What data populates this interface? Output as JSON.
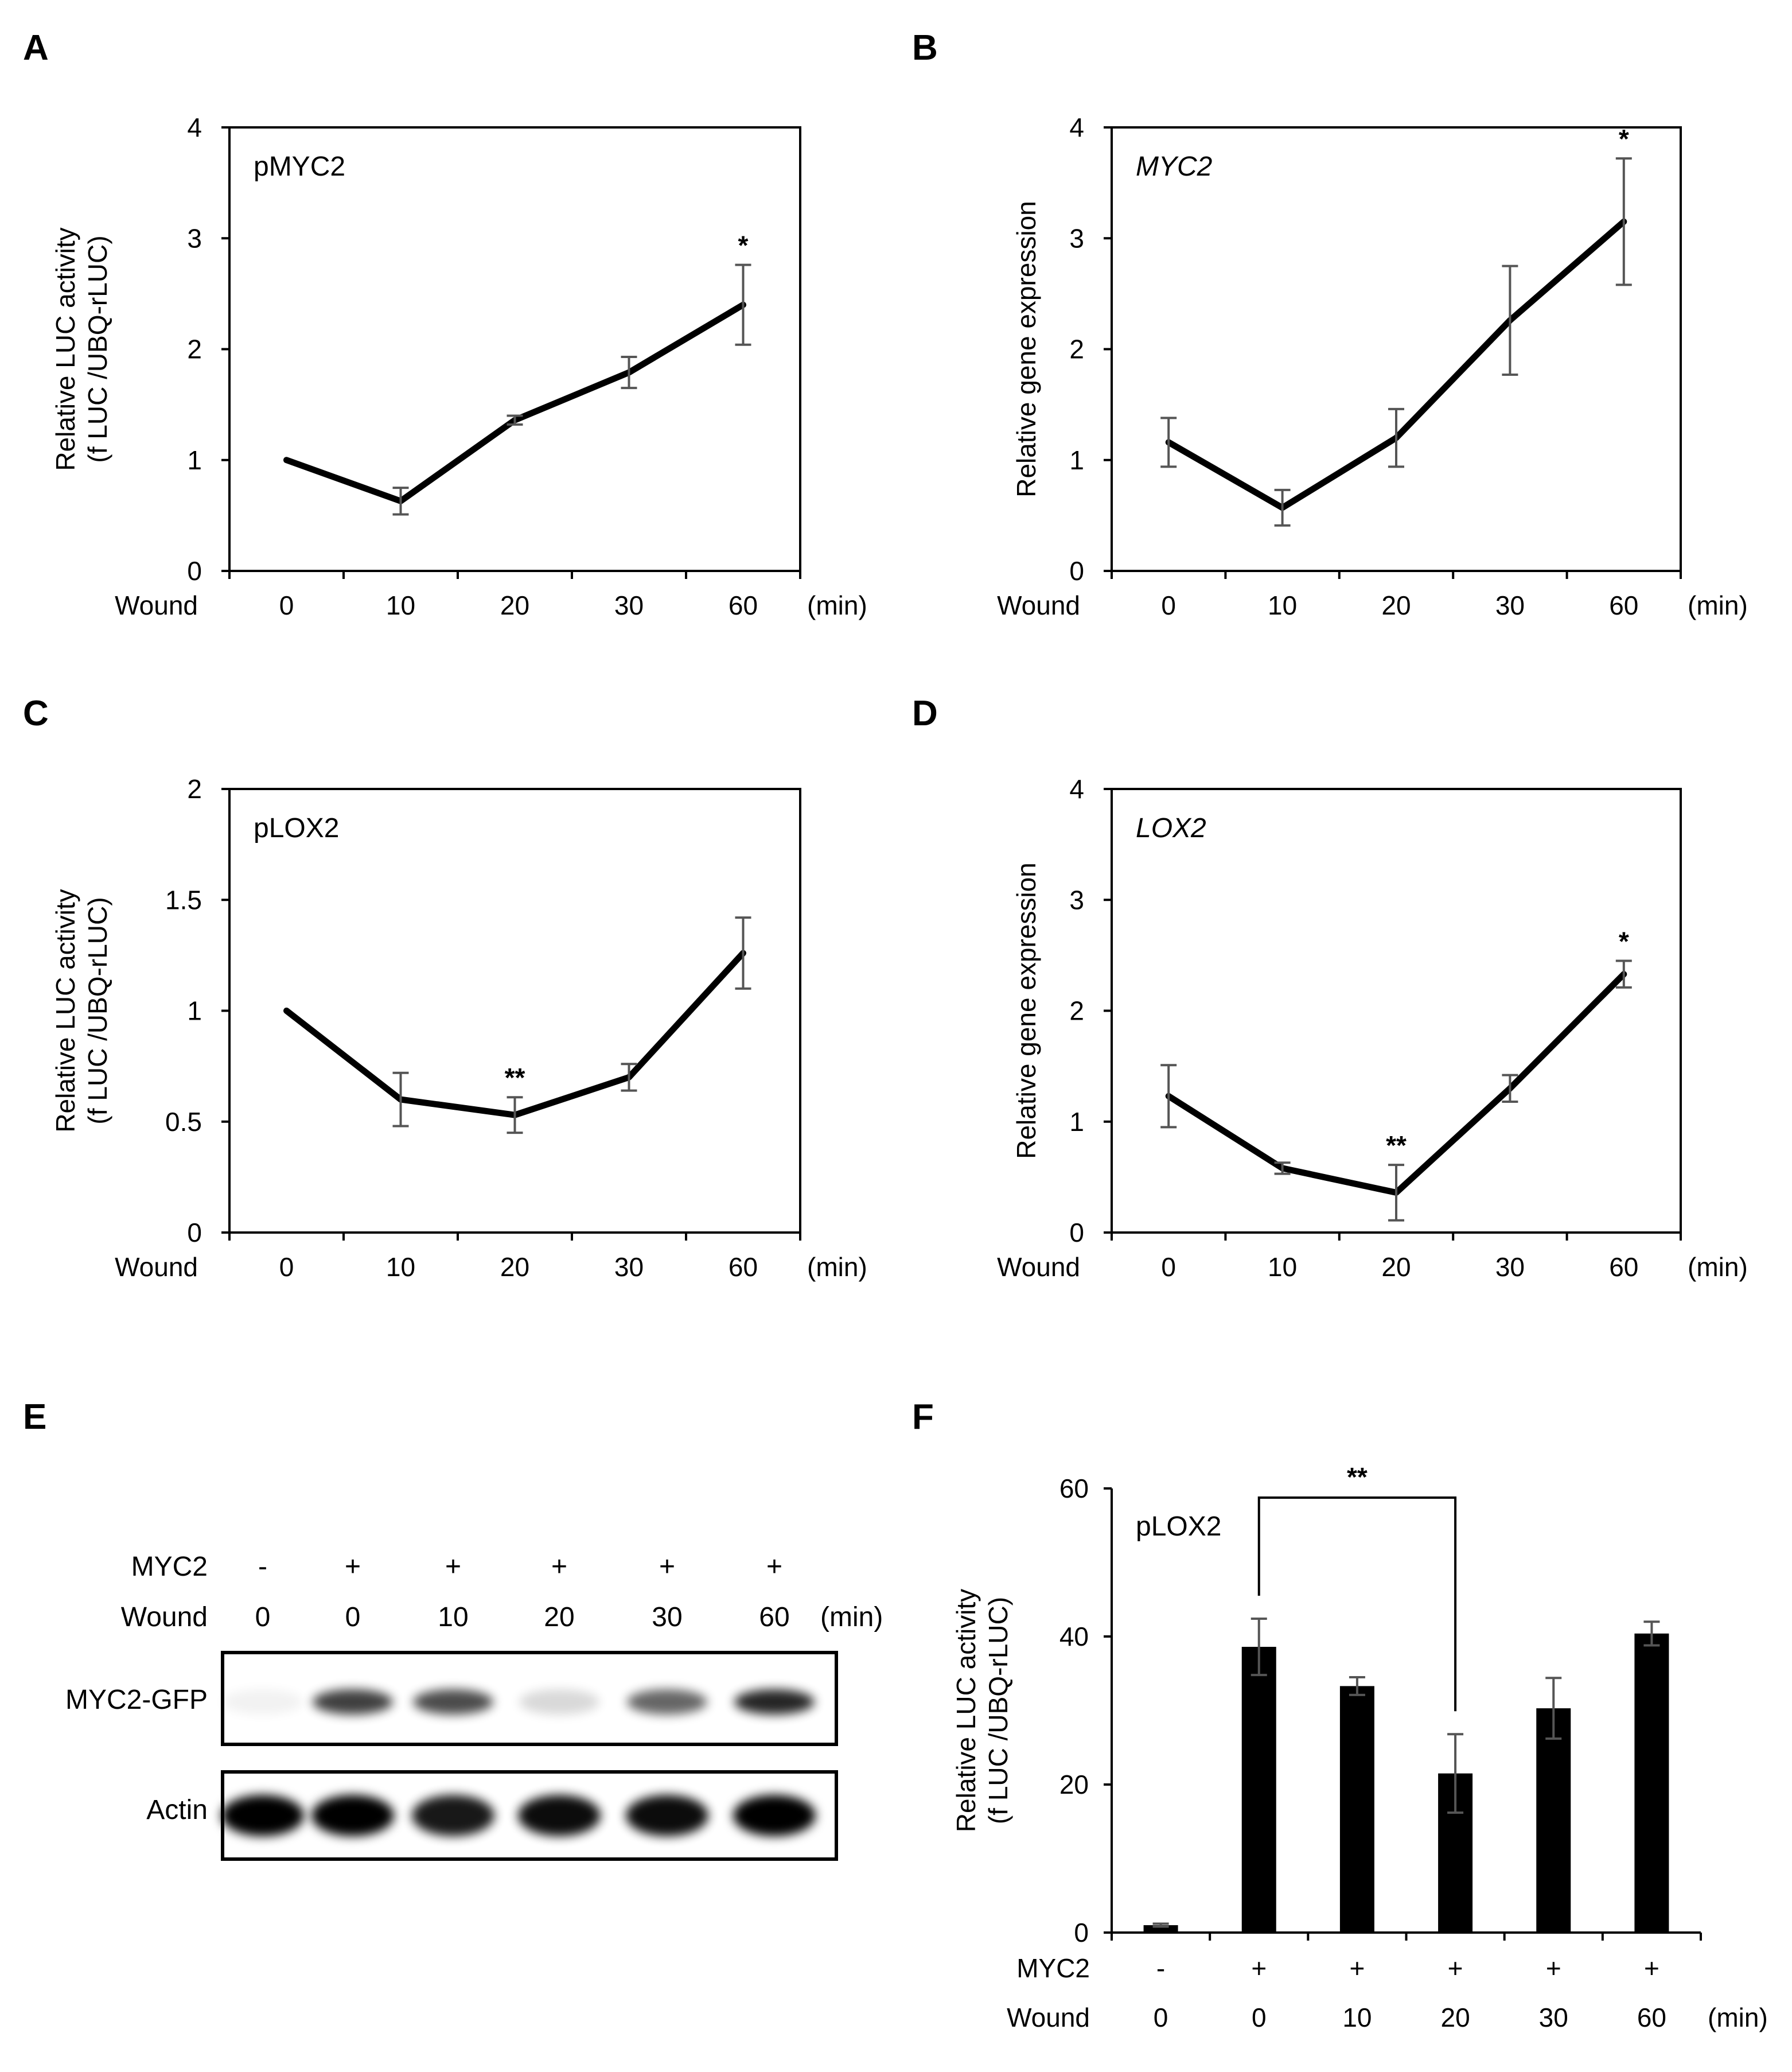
{
  "panel_letters": [
    "A",
    "B",
    "C",
    "D",
    "E",
    "F"
  ],
  "chart_data": [
    {
      "panel": "A",
      "type": "line",
      "annotation": "pMYC2",
      "annotation_italic": false,
      "ylabel_lines": [
        "Relative LUC activity",
        "(f LUC /UBQ-rLUC)"
      ],
      "ylim": [
        0,
        4
      ],
      "yticks": [
        "0",
        "1",
        "2",
        "3",
        "4"
      ],
      "xrow_label": "Wound",
      "categories": [
        "0",
        "10",
        "20",
        "30",
        "60"
      ],
      "unit": "(min)",
      "values": [
        1.0,
        0.63,
        1.36,
        1.79,
        2.4
      ],
      "errors": [
        0,
        0.12,
        0.04,
        0.14,
        0.36
      ],
      "significance": [
        "",
        "",
        "",
        "",
        "*"
      ]
    },
    {
      "panel": "B",
      "type": "line",
      "annotation": "MYC2",
      "annotation_italic": true,
      "ylabel_lines": [
        "Relative gene expression"
      ],
      "ylim": [
        0,
        4
      ],
      "yticks": [
        "0",
        "1",
        "2",
        "3",
        "4"
      ],
      "xrow_label": "Wound",
      "categories": [
        "0",
        "10",
        "20",
        "30",
        "60"
      ],
      "unit": "(min)",
      "values": [
        1.16,
        0.57,
        1.2,
        2.26,
        3.15
      ],
      "errors": [
        0.22,
        0.16,
        0.26,
        0.49,
        0.57
      ],
      "significance": [
        "",
        "",
        "",
        "",
        "*"
      ]
    },
    {
      "panel": "C",
      "type": "line",
      "annotation": "pLOX2",
      "annotation_italic": false,
      "ylabel_lines": [
        "Relative LUC activity",
        "(f LUC /UBQ-rLUC)"
      ],
      "ylim": [
        0,
        2
      ],
      "yticks": [
        "0",
        "0.5",
        "1",
        "1.5",
        "2"
      ],
      "xrow_label": "Wound",
      "categories": [
        "0",
        "10",
        "20",
        "30",
        "60"
      ],
      "unit": "(min)",
      "values": [
        1.0,
        0.6,
        0.53,
        0.7,
        1.26
      ],
      "errors": [
        0,
        0.12,
        0.08,
        0.06,
        0.16
      ],
      "significance": [
        "",
        "",
        "**",
        "",
        ""
      ]
    },
    {
      "panel": "D",
      "type": "line",
      "annotation": "LOX2",
      "annotation_italic": true,
      "ylabel_lines": [
        "Relative gene expression"
      ],
      "ylim": [
        0,
        4
      ],
      "yticks": [
        "0",
        "1",
        "2",
        "3",
        "4"
      ],
      "xrow_label": "Wound",
      "categories": [
        "0",
        "10",
        "20",
        "30",
        "60"
      ],
      "unit": "(min)",
      "values": [
        1.23,
        0.58,
        0.36,
        1.3,
        2.33
      ],
      "errors": [
        0.28,
        0.05,
        0.25,
        0.12,
        0.12
      ],
      "significance": [
        "",
        "",
        "**",
        "",
        "*"
      ]
    },
    {
      "panel": "F",
      "type": "bar",
      "annotation": "pLOX2",
      "annotation_italic": false,
      "ylabel_lines": [
        "Relative LUC activity",
        "(f LUC /UBQ-rLUC)"
      ],
      "ylim": [
        0,
        60
      ],
      "yticks": [
        "0",
        "20",
        "40",
        "60"
      ],
      "row1_label": "MYC2",
      "row1": [
        "-",
        "+",
        "+",
        "+",
        "+",
        "+"
      ],
      "row2_label": "Wound",
      "row2": [
        "0",
        "0",
        "10",
        "20",
        "30",
        "60"
      ],
      "unit": "(min)",
      "values": [
        1.0,
        38.6,
        33.3,
        21.5,
        30.3,
        40.4
      ],
      "errors": [
        0.2,
        3.8,
        1.2,
        5.3,
        4.1,
        1.6
      ],
      "bracket": {
        "from": 1,
        "to": 3,
        "label": "**"
      }
    }
  ],
  "blot": {
    "panel": "E",
    "row1_label": "MYC2",
    "row1": [
      "-",
      "+",
      "+",
      "+",
      "+",
      "+"
    ],
    "row2_label": "Wound",
    "row2": [
      "0",
      "0",
      "10",
      "20",
      "30",
      "60"
    ],
    "unit": "(min)",
    "bands": [
      "MYC2-GFP",
      "Actin"
    ],
    "band_intensity": {
      "MYC2-GFP": [
        0.05,
        0.75,
        0.7,
        0.15,
        0.6,
        0.85
      ],
      "Actin": [
        1.0,
        1.0,
        0.9,
        0.95,
        0.95,
        1.0
      ]
    }
  }
}
